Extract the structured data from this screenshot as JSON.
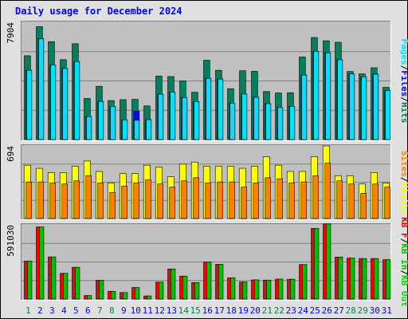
{
  "title": "Daily usage for December 2024",
  "colors": {
    "hits": "#00805c",
    "files": "#0000ff",
    "pages": "#00e0ff",
    "visits": "#ffff00",
    "sites": "#ff8000",
    "kbf": "#ff0000",
    "kbin": "#00c000",
    "kbout": "#00e000",
    "weekend": "#00805c",
    "weekday": "#0000ff"
  },
  "chart_data": [
    {
      "type": "bar",
      "ytick": "7904",
      "ylim": [
        0,
        7904
      ],
      "legend": [
        {
          "label": "Pages",
          "color": "#00e0ff"
        },
        {
          "label": "Files",
          "color": "#0000ff"
        },
        {
          "label": "Hits",
          "color": "#00805c"
        }
      ],
      "categories": [
        "1",
        "2",
        "3",
        "4",
        "5",
        "6",
        "7",
        "8",
        "9",
        "10",
        "11",
        "12",
        "13",
        "14",
        "15",
        "16",
        "17",
        "18",
        "19",
        "20",
        "21",
        "22",
        "23",
        "24",
        "25",
        "26",
        "27",
        "28",
        "29",
        "30",
        "31"
      ],
      "series": [
        {
          "name": "Hits",
          "values": [
            5650,
            7620,
            6600,
            5390,
            6460,
            2770,
            3590,
            2630,
            2690,
            2710,
            2270,
            4280,
            4250,
            3950,
            3190,
            5350,
            4670,
            3430,
            4640,
            4600,
            3240,
            3140,
            3160,
            5570,
            6880,
            6660,
            6560,
            4590,
            4430,
            4840,
            3520
          ]
        },
        {
          "name": "Files",
          "values": [
            4670,
            6800,
            5020,
            4790,
            5260,
            1550,
            2570,
            2220,
            1330,
            1920,
            1340,
            3060,
            3190,
            2830,
            2560,
            4130,
            4080,
            2450,
            3070,
            2850,
            2420,
            2160,
            2240,
            4350,
            5950,
            5840,
            5380,
            4420,
            4230,
            4410,
            3300
          ]
        },
        {
          "name": "Pages",
          "values": [
            4670,
            6800,
            5020,
            4790,
            5260,
            1550,
            2570,
            2220,
            1330,
            1300,
            1340,
            3060,
            3190,
            2830,
            2560,
            4130,
            4080,
            2450,
            3070,
            2850,
            2420,
            2160,
            2240,
            4350,
            5950,
            5840,
            5380,
            4420,
            4230,
            4410,
            3300
          ]
        }
      ]
    },
    {
      "type": "bar",
      "ytick": "694",
      "ylim": [
        0,
        694
      ],
      "legend": [
        {
          "label": "Sites",
          "color": "#ff8000"
        },
        {
          "label": "Visits",
          "color": "#ffff00"
        }
      ],
      "series": [
        {
          "name": "Visits",
          "values": [
            510,
            480,
            440,
            440,
            500,
            550,
            450,
            340,
            430,
            430,
            510,
            490,
            400,
            520,
            540,
            500,
            500,
            500,
            480,
            500,
            590,
            510,
            450,
            450,
            590,
            694,
            410,
            410,
            330,
            440,
            340
          ]
        },
        {
          "name": "Sites",
          "values": [
            350,
            350,
            340,
            330,
            360,
            410,
            340,
            250,
            310,
            340,
            370,
            330,
            300,
            360,
            390,
            340,
            350,
            350,
            300,
            340,
            390,
            380,
            340,
            350,
            410,
            530,
            360,
            330,
            240,
            330,
            300
          ]
        }
      ]
    },
    {
      "type": "bar",
      "ytick": "591030",
      "ylim": [
        0,
        591030
      ],
      "legend": [
        {
          "label": "KB F",
          "color": "#ff0000"
        },
        {
          "label": "KB In",
          "color": "#00c000"
        },
        {
          "label": "KB Out",
          "color": "#00e000"
        }
      ],
      "series": [
        {
          "name": "KB F",
          "values": [
            303000,
            575000,
            336000,
            205000,
            253000,
            28000,
            150000,
            62000,
            52000,
            92000,
            25000,
            135000,
            240000,
            183000,
            132000,
            296000,
            277000,
            169000,
            137000,
            153000,
            151000,
            159000,
            158000,
            275000,
            563000,
            599000,
            335000,
            327000,
            323000,
            323000,
            314000
          ]
        },
        {
          "name": "KB In",
          "values": [
            303000,
            575000,
            336000,
            205000,
            253000,
            28000,
            150000,
            62000,
            52000,
            92000,
            25000,
            135000,
            240000,
            183000,
            132000,
            296000,
            277000,
            169000,
            137000,
            153000,
            151000,
            159000,
            158000,
            275000,
            563000,
            599000,
            335000,
            327000,
            323000,
            323000,
            314000
          ]
        },
        {
          "name": "KB Out",
          "values": [
            303000,
            575000,
            336000,
            205000,
            253000,
            28000,
            150000,
            62000,
            52000,
            92000,
            25000,
            135000,
            240000,
            183000,
            132000,
            296000,
            277000,
            169000,
            137000,
            153000,
            151000,
            159000,
            158000,
            275000,
            563000,
            599000,
            335000,
            327000,
            323000,
            323000,
            314000
          ]
        }
      ]
    }
  ],
  "weekend_days": [
    1,
    7,
    8,
    14,
    15,
    21,
    22,
    28,
    29
  ]
}
